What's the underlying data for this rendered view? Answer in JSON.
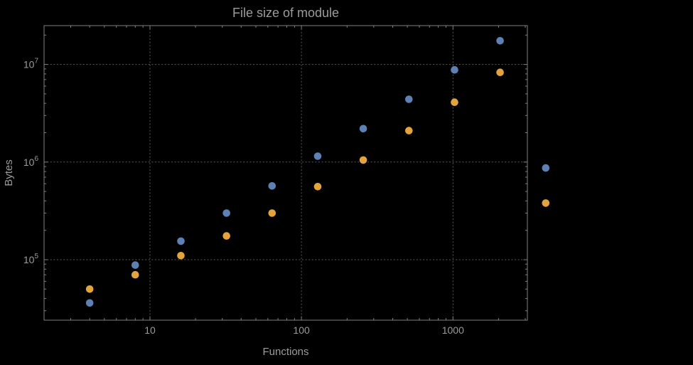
{
  "colors": {
    "background": "#000000",
    "frame": "#7f7f7f",
    "grid": "#5c5c5c",
    "text": "#9b9b9b",
    "series1_blue": "#5e81b5",
    "series2_orange": "#e3a33d"
  },
  "chart_data": {
    "type": "scatter",
    "title": "File size of module",
    "xlabel": "Functions",
    "ylabel": "Bytes",
    "xscale": "log",
    "yscale": "log",
    "grid": true,
    "xlim": [
      2,
      3100
    ],
    "ylim": [
      24000,
      25000000
    ],
    "xticks": [
      {
        "value": 10,
        "label": "10"
      },
      {
        "value": 100,
        "label": "100"
      },
      {
        "value": 1000,
        "label": "1000"
      }
    ],
    "yticks": [
      {
        "value": 100000,
        "base": "10",
        "exp": "5"
      },
      {
        "value": 1000000,
        "base": "10",
        "exp": "6"
      },
      {
        "value": 10000000,
        "base": "10",
        "exp": "7"
      }
    ],
    "legend": "none",
    "series": [
      {
        "name": "blue-series",
        "color": "#5e81b5",
        "points": [
          [
            4,
            36000
          ],
          [
            8,
            88000
          ],
          [
            16,
            155000
          ],
          [
            32,
            300000
          ],
          [
            64,
            570000
          ],
          [
            128,
            1150000
          ],
          [
            256,
            2200000
          ],
          [
            512,
            4400000
          ],
          [
            1024,
            8800000
          ],
          [
            2048,
            17500000
          ],
          [
            4096,
            870000
          ]
        ]
      },
      {
        "name": "orange-series",
        "color": "#e3a33d",
        "points": [
          [
            4,
            50000
          ],
          [
            8,
            70000
          ],
          [
            16,
            110000
          ],
          [
            32,
            175000
          ],
          [
            64,
            300000
          ],
          [
            128,
            560000
          ],
          [
            256,
            1050000
          ],
          [
            512,
            2100000
          ],
          [
            1024,
            4100000
          ],
          [
            2048,
            8300000
          ],
          [
            4096,
            380000
          ]
        ]
      }
    ]
  }
}
